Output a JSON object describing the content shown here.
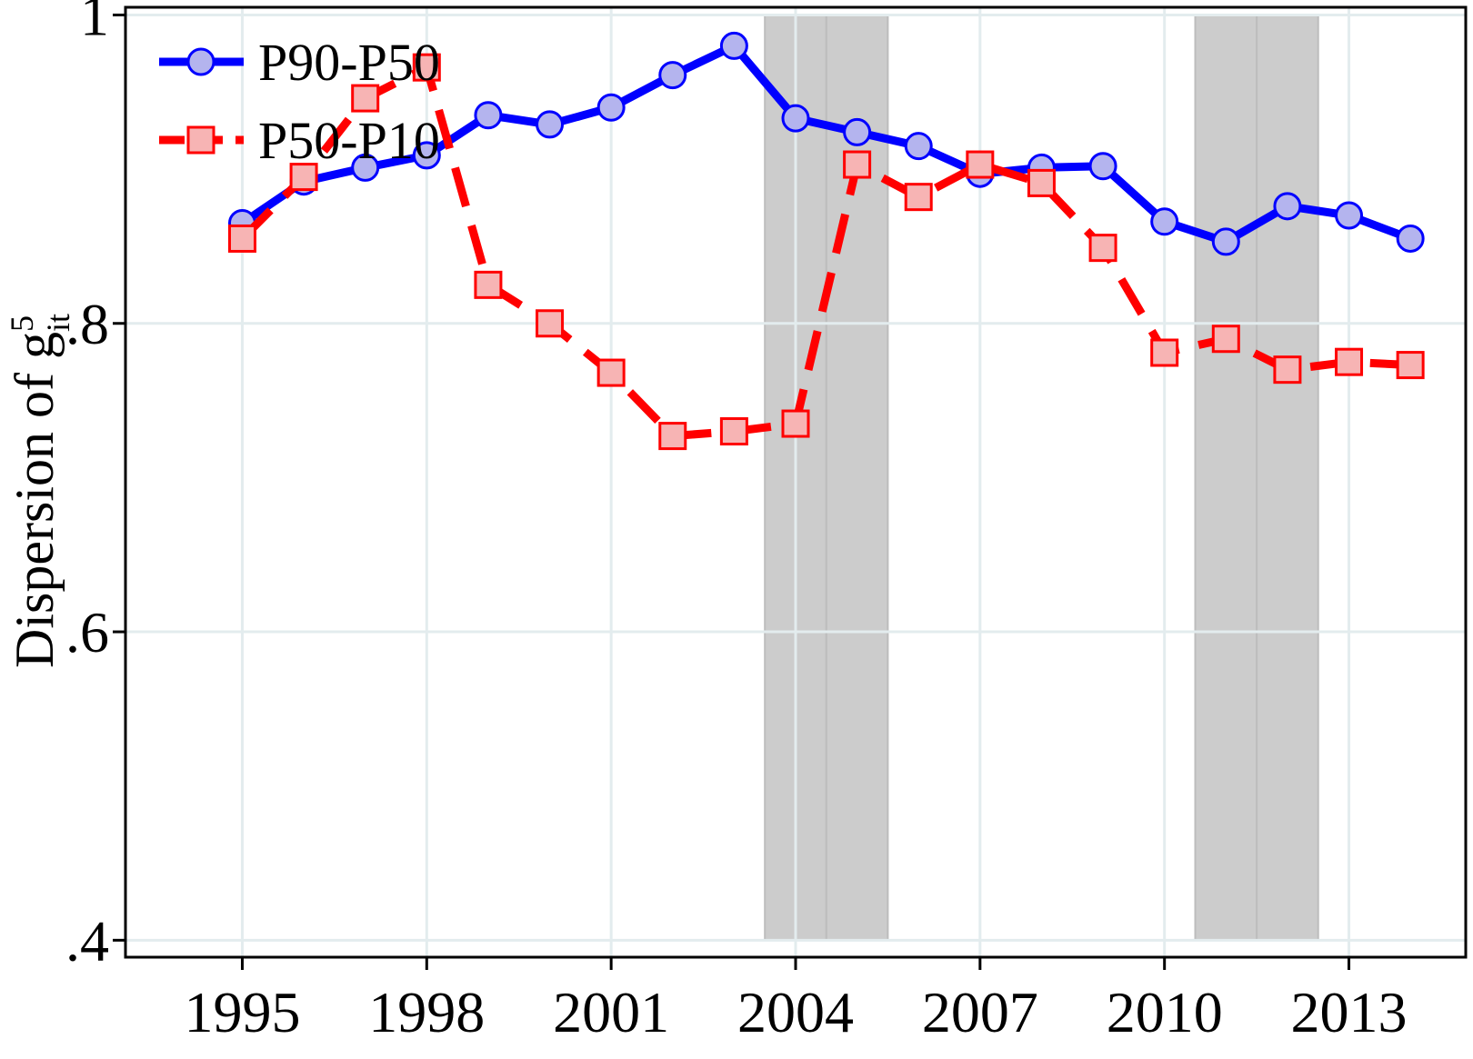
{
  "chart_data": {
    "type": "line",
    "ylabel": "Dispersion of g",
    "ylabel_superscript": "5",
    "ylabel_subscript": "it",
    "x": [
      1995,
      1996,
      1997,
      1998,
      1999,
      2000,
      2001,
      2002,
      2003,
      2004,
      2005,
      2006,
      2007,
      2008,
      2009,
      2010,
      2011,
      2012,
      2013,
      2014
    ],
    "xlim": [
      1993.1,
      2014.9
    ],
    "ylim": [
      0.389,
      1.005
    ],
    "xticks": [
      1995,
      1998,
      2001,
      2004,
      2007,
      2010,
      2013
    ],
    "xtick_labels": [
      "1995",
      "1998",
      "2001",
      "2004",
      "2007",
      "2010",
      "2013"
    ],
    "yticks": [
      0.4,
      0.6,
      0.8,
      1.0
    ],
    "ytick_labels": [
      ".4",
      ".6",
      ".8",
      "1"
    ],
    "grid": true,
    "legend_position": "top-left",
    "shaded_regions": [
      {
        "from": 2003.5,
        "to": 2004.5
      },
      {
        "from": 2004.5,
        "to": 2005.5
      },
      {
        "from": 2010.5,
        "to": 2011.5
      },
      {
        "from": 2011.5,
        "to": 2012.5
      }
    ],
    "series": [
      {
        "name": "P90-P50",
        "color": "#0000ff",
        "marker": "circle",
        "marker_fill": "#b4b4ee",
        "line_style": "solid",
        "values": [
          0.865,
          0.892,
          0.901,
          0.909,
          0.935,
          0.929,
          0.94,
          0.961,
          0.98,
          0.933,
          0.924,
          0.915,
          0.897,
          0.901,
          0.902,
          0.866,
          0.853,
          0.876,
          0.87,
          0.855
        ]
      },
      {
        "name": "P50-P10",
        "color": "#ff0000",
        "marker": "square",
        "marker_fill": "#f7b4b4",
        "line_style": "dashed",
        "values": [
          0.855,
          0.895,
          0.946,
          0.966,
          0.825,
          0.8,
          0.768,
          0.727,
          0.73,
          0.735,
          0.903,
          0.882,
          0.903,
          0.891,
          0.849,
          0.781,
          0.79,
          0.77,
          0.775,
          0.773
        ]
      }
    ]
  }
}
